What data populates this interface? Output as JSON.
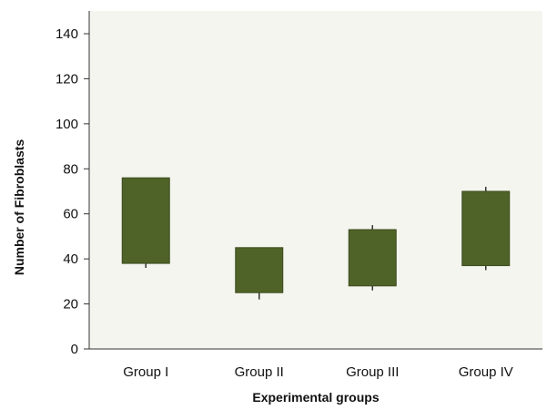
{
  "chart_data": {
    "type": "box",
    "title": "",
    "xlabel": "Experimental groups",
    "ylabel": "Number of Fibroblasts",
    "ylim": [
      0,
      140
    ],
    "yticks": [
      0,
      20,
      40,
      60,
      80,
      100,
      120,
      140
    ],
    "grid": false,
    "legend": "none",
    "categories": [
      "Group I",
      "Group II",
      "Group III",
      "Group IV"
    ],
    "series": [
      {
        "boxes": [
          {
            "category": "Group I",
            "whisker_low": 36,
            "q1": 38,
            "q3": 76,
            "whisker_high": 76
          },
          {
            "category": "Group II",
            "whisker_low": 22,
            "q1": 25,
            "q3": 45,
            "whisker_high": 45
          },
          {
            "category": "Group III",
            "whisker_low": 26,
            "q1": 28,
            "q3": 53,
            "whisker_high": 55
          },
          {
            "category": "Group IV",
            "whisker_low": 35,
            "q1": 37,
            "q3": 70,
            "whisker_high": 72
          }
        ]
      }
    ],
    "colors": {
      "plot_background": "#f5f5ef",
      "box_fill": "#4f6228",
      "box_stroke": "#3d4d1f",
      "whisker": "#333333",
      "axis": "#333333"
    }
  }
}
